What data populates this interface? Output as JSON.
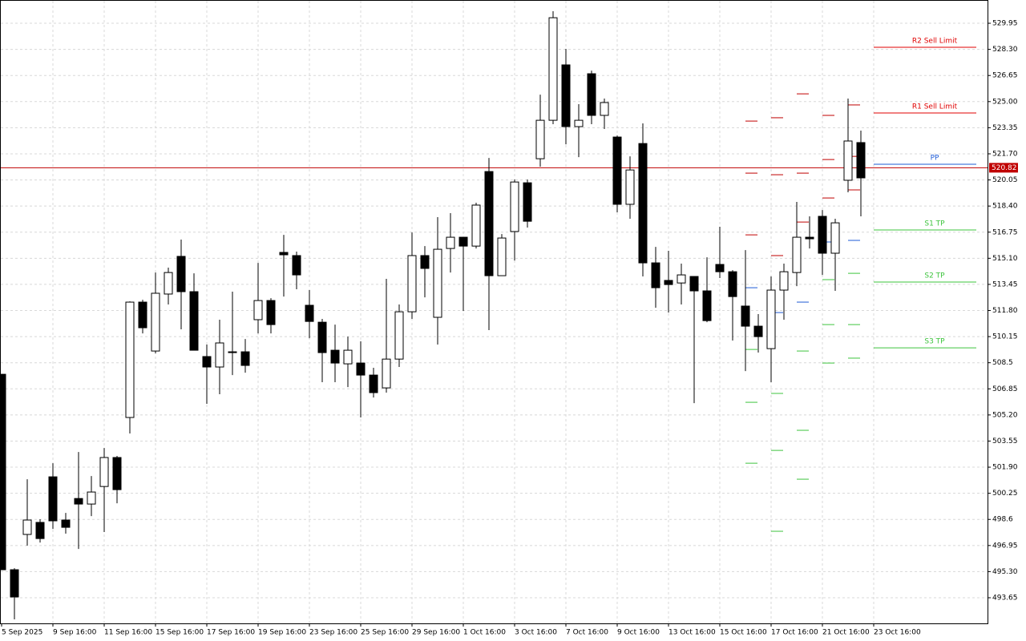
{
  "chart_data": {
    "type": "candlestick",
    "categories": [
      "5 Sep 2025",
      null,
      null,
      null,
      "9 Sep 16:00",
      null,
      null,
      null,
      "11 Sep 16:00",
      null,
      null,
      null,
      "15 Sep 16:00",
      null,
      null,
      null,
      "17 Sep 16:00",
      null,
      null,
      null,
      "19 Sep 16:00",
      null,
      null,
      null,
      "23 Sep 16:00",
      null,
      null,
      null,
      "25 Sep 16:00",
      null,
      null,
      null,
      "29 Sep 16:00",
      null,
      null,
      null,
      "1 Oct 16:00",
      null,
      null,
      null,
      "3 Oct 16:00",
      null,
      null,
      null,
      "7 Oct 16:00",
      null,
      null,
      null,
      "9 Oct 16:00",
      null,
      null,
      null,
      "13 Oct 16:00",
      null,
      null,
      null,
      "15 Oct 16:00",
      null,
      null,
      null,
      "17 Oct 16:00",
      null,
      null,
      null,
      "21 Oct 16:00",
      null,
      null,
      null,
      "23 Oct 16:00"
    ],
    "open": [
      507.77,
      495.42,
      497.65,
      498.41,
      501.29,
      498.56,
      499.92,
      499.57,
      500.68,
      502.51,
      505.04,
      512.33,
      509.24,
      512.84,
      515.22,
      512.99,
      508.89,
      508.23,
      509.19,
      509.19,
      511.22,
      512.43,
      515.47,
      515.27,
      512.13,
      511.06,
      509.29,
      508.43,
      508.48,
      507.72,
      506.91,
      508.73,
      511.72,
      515.27,
      511.37,
      515.72,
      516.43,
      515.87,
      520.58,
      514.0,
      516.79,
      519.87,
      521.39,
      523.82,
      527.32,
      523.42,
      526.76,
      524.13,
      522.76,
      518.51,
      522.35,
      514.81,
      513.7,
      513.54,
      513.95,
      513.04,
      514.71,
      514.25,
      512.08,
      510.81,
      509.39,
      513.09,
      514.2,
      516.43,
      517.75,
      515.42,
      520.03,
      522.41,
      null
    ],
    "high": [
      507.77,
      495.52,
      501.14,
      498.61,
      502.15,
      499.01,
      502.86,
      501.34,
      503.11,
      502.61,
      512.38,
      512.48,
      514.2,
      514.51,
      516.28,
      514.15,
      509.65,
      511.22,
      512.99,
      510.0,
      514.81,
      512.58,
      516.58,
      515.52,
      513.09,
      511.27,
      510.91,
      510.15,
      509.85,
      508.18,
      513.8,
      512.18,
      516.73,
      515.87,
      517.7,
      517.95,
      516.43,
      518.61,
      521.44,
      516.63,
      520.08,
      520.08,
      525.44,
      530.71,
      528.33,
      524.84,
      526.96,
      525.19,
      522.86,
      521.54,
      523.62,
      515.82,
      515.57,
      514.76,
      513.95,
      515.16,
      517.09,
      514.35,
      515.62,
      511.57,
      513.95,
      514.76,
      518.66,
      517.75,
      518.15,
      517.6,
      525.19,
      523.17,
      null
    ],
    "low": [
      495.42,
      492.28,
      496.94,
      497.14,
      498.0,
      497.7,
      496.73,
      498.81,
      497.8,
      499.62,
      504.03,
      510.35,
      509.09,
      512.18,
      510.61,
      509.29,
      505.9,
      506.51,
      507.72,
      507.87,
      510.35,
      510.35,
      512.68,
      513.14,
      510.05,
      507.27,
      507.27,
      506.96,
      505.04,
      506.3,
      506.61,
      508.23,
      511.27,
      512.63,
      509.65,
      514.2,
      511.77,
      515.72,
      510.56,
      514.0,
      514.96,
      517.04,
      520.89,
      523.57,
      522.3,
      521.49,
      523.57,
      523.27,
      518.0,
      517.6,
      513.95,
      511.97,
      511.67,
      512.18,
      505.95,
      511.06,
      513.85,
      509.9,
      507.97,
      509.14,
      507.27,
      511.22,
      513.34,
      515.72,
      514.05,
      513.04,
      519.27,
      517.75,
      null
    ],
    "close": [
      495.42,
      493.7,
      498.56,
      497.39,
      498.51,
      498.1,
      499.57,
      500.33,
      502.51,
      500.48,
      512.33,
      510.71,
      512.89,
      514.2,
      512.99,
      509.29,
      508.23,
      509.75,
      509.14,
      508.33,
      512.43,
      510.91,
      515.32,
      514.05,
      511.11,
      509.14,
      508.48,
      509.29,
      507.72,
      506.61,
      508.73,
      511.72,
      515.27,
      514.46,
      515.67,
      516.43,
      515.87,
      518.46,
      514.0,
      516.38,
      519.92,
      517.44,
      523.82,
      530.3,
      523.42,
      523.82,
      524.13,
      524.94,
      518.51,
      520.68,
      514.81,
      513.24,
      513.44,
      514.05,
      513.04,
      511.16,
      514.25,
      512.68,
      510.81,
      510.15,
      513.09,
      514.25,
      516.43,
      516.33,
      515.42,
      517.34,
      522.51,
      520.18,
      null
    ],
    "up_color": "#ffffff",
    "down_color": "#000000",
    "ylim": [
      492.03,
      531.42
    ],
    "yticks": [
      493.65,
      {
        "value": 495.3,
        "label": "495.30"
      },
      496.95,
      498.6,
      500.25,
      {
        "value": 501.9,
        "label": "501.90"
      },
      503.55,
      {
        "value": 505.2,
        "label": "505.20"
      },
      506.85,
      508.5,
      510.15,
      {
        "value": 511.8,
        "label": "511.80"
      },
      513.45,
      {
        "value": 515.1,
        "label": "515.10"
      },
      516.75,
      {
        "value": 518.4,
        "label": "518.40"
      },
      520.05,
      {
        "value": 521.7,
        "label": "521.70"
      },
      523.35,
      {
        "value": 525,
        "label": "525.00"
      },
      526.65,
      {
        "value": 528.3,
        "label": "528.30"
      },
      529.95
    ],
    "grid": true,
    "current_price": {
      "value": 520.82,
      "color": "#c00000"
    },
    "levels": [
      {
        "name": "R2 Sell Limit",
        "value": 528.43,
        "color": "#e00000"
      },
      {
        "name": "R1 Sell Limit",
        "value": 524.28,
        "color": "#e00000"
      },
      {
        "name": "PP",
        "value": 521.04,
        "color": "#1e5bd6"
      },
      {
        "name": "S1 TP",
        "value": 516.89,
        "color": "#3ec43e"
      },
      {
        "name": "S2 TP",
        "value": 513.6,
        "color": "#3ec43e"
      },
      {
        "name": "S3 TP",
        "value": 509.44,
        "color": "#3ec43e"
      }
    ],
    "pivot_history_colors": [
      "#c00000",
      "#c00000",
      "#c00000",
      "#1e5bd6",
      "#3ec43e",
      "#3ec43e",
      "#3ec43e"
    ],
    "pivot_history": [
      [
        523.77,
        520.48,
        516.58,
        513.24,
        509.34,
        506.0,
        502.15
      ],
      [
        523.98,
        520.38,
        515.27,
        511.67,
        506.56,
        502.96,
        497.85
      ],
      [
        525.49,
        520.48,
        517.39,
        512.33,
        509.24,
        504.23,
        501.14
      ],
      [
        524.13,
        521.34,
        518.91,
        516.13,
        513.75,
        510.91,
        508.48
      ],
      [
        524.79,
        521.54,
        519.42,
        516.23,
        514.15,
        510.91,
        508.79
      ]
    ]
  }
}
